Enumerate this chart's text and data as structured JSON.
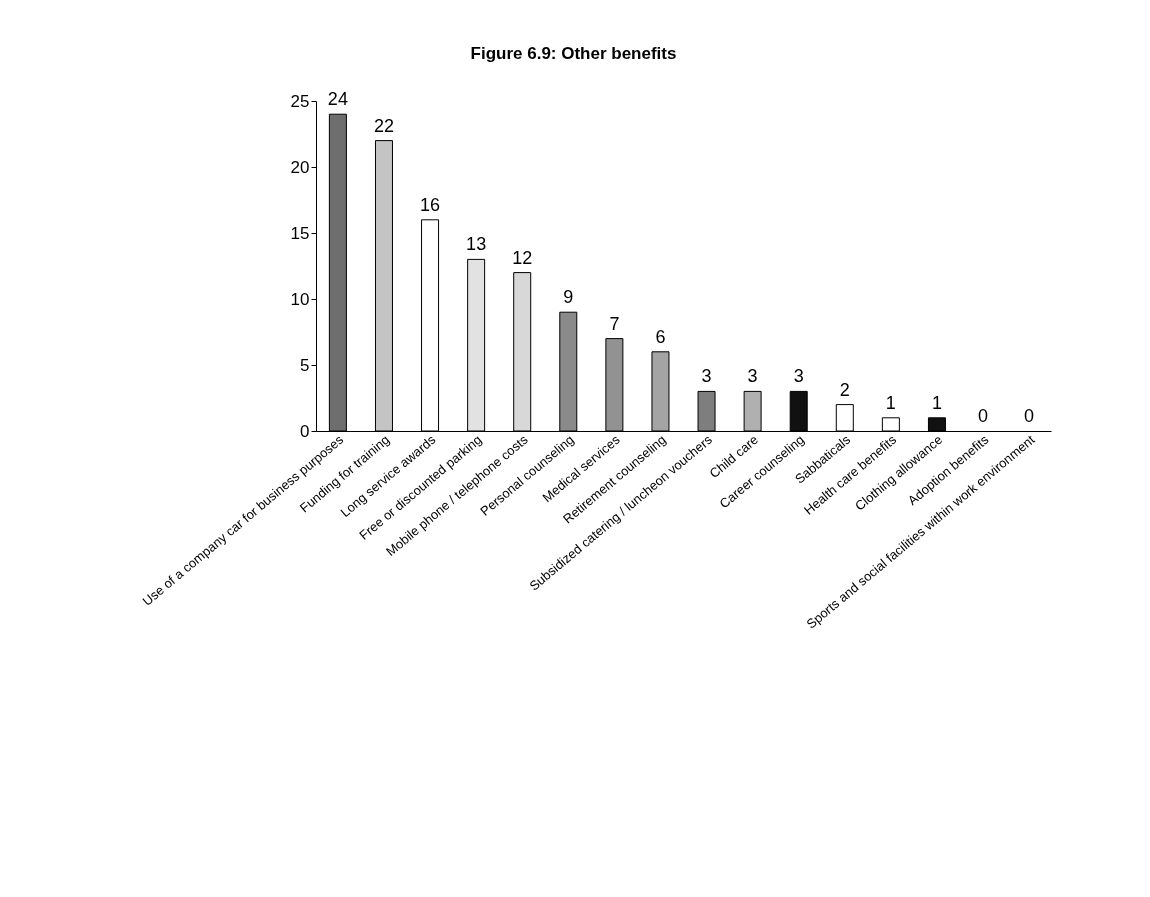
{
  "chart_data": {
    "type": "bar",
    "title": "Figure 6.9: Other benefits",
    "categories": [
      "Use of a company car for business purposes",
      "Funding for training",
      "Long service awards",
      "Free or discounted parking",
      "Mobile phone / telephone costs",
      "Personal counseling",
      "Medical services",
      "Retirement counseling",
      "Subsidized catering / luncheon vouchers",
      "Child care",
      "Career counseling",
      "Sabbaticals",
      "Health care benefits",
      "Clothing allowance",
      "Adoption benefits",
      "Sports and social facilities within work environment"
    ],
    "values": [
      24,
      22,
      16,
      13,
      12,
      9,
      7,
      6,
      3,
      3,
      3,
      2,
      1,
      1,
      0,
      0
    ],
    "colors": [
      "#6e6e6e",
      "#c4c4c4",
      "#ffffff",
      "#e2e2e2",
      "#d8d8d8",
      "#8a8a8a",
      "#929292",
      "#a4a4a4",
      "#7e7e7e",
      "#b0b0b0",
      "#111111",
      "#ffffff",
      "#ffffff",
      "#111111",
      "#ffffff",
      "#ffffff"
    ],
    "ylim": [
      0,
      25
    ],
    "yticks": [
      0,
      5,
      10,
      15,
      20,
      25
    ],
    "grid": false,
    "legend": false,
    "data_labels": true
  }
}
